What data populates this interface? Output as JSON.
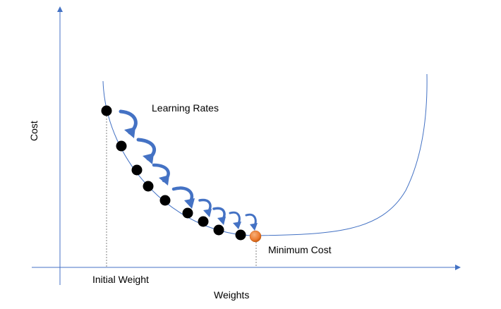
{
  "labels": {
    "x_axis": "Weights",
    "y_axis": "Cost",
    "learning_rates": "Learning Rates",
    "minimum_cost": "Minimum Cost",
    "initial_weight": "Initial Weight"
  },
  "colors": {
    "axis": "#4472c4",
    "curve": "#4472c4",
    "arrow": "#4472c4",
    "point": "#000000",
    "minimum_point": "#ed7d31",
    "guide": "#808080"
  },
  "gradient_steps": 9
}
